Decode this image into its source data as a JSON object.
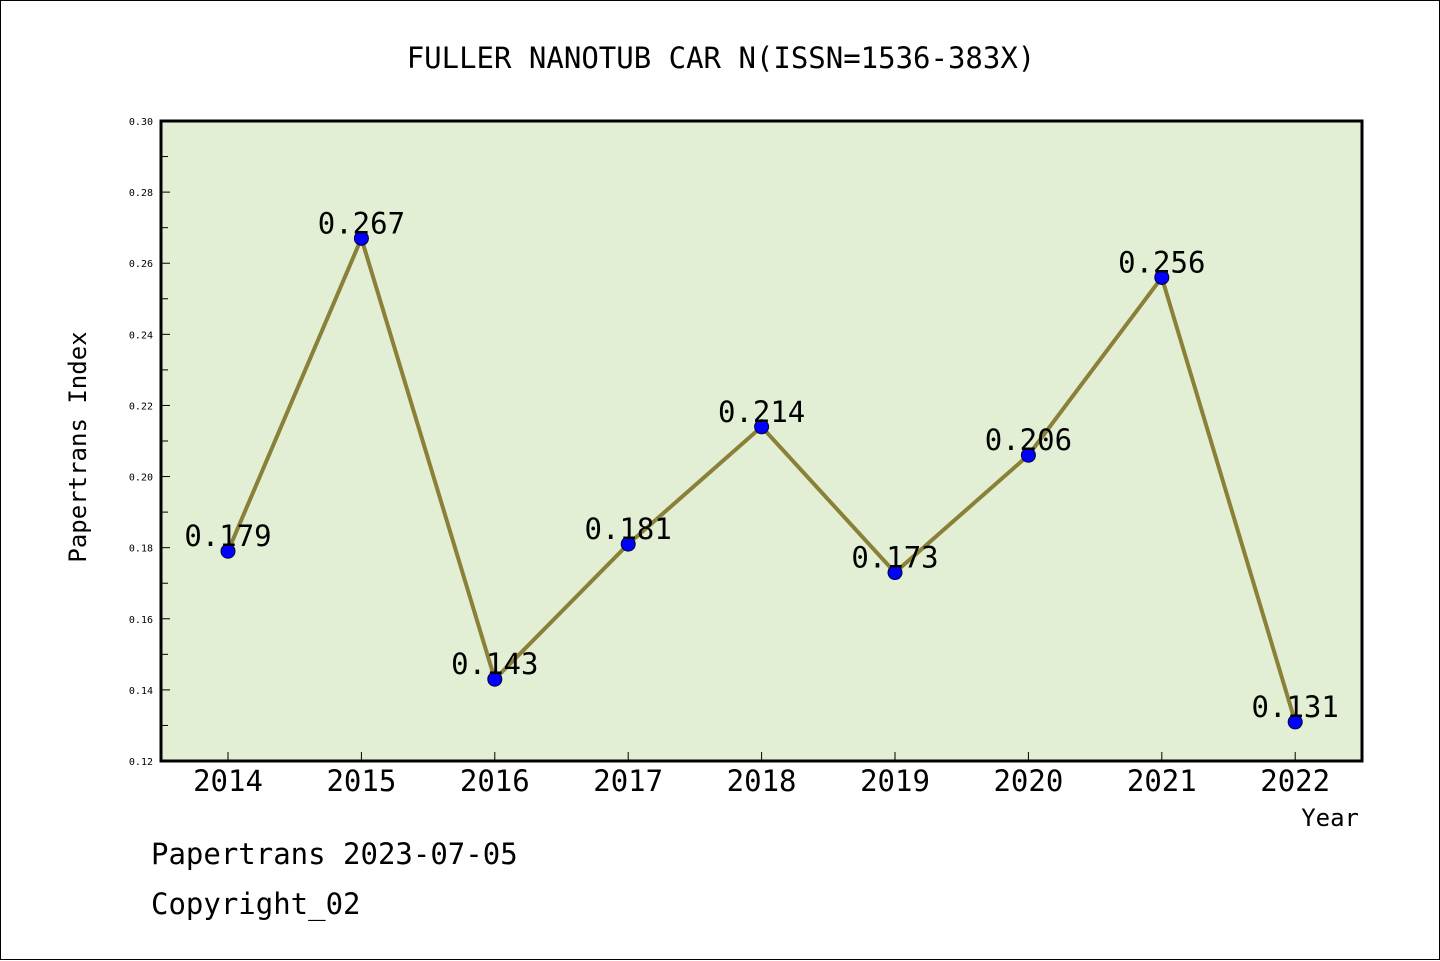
{
  "chart_data": {
    "type": "line",
    "title": "FULLER NANOTUB CAR N(ISSN=1536-383X)",
    "xlabel": "Year",
    "ylabel": "Papertrans Index",
    "x": [
      "2014",
      "2015",
      "2016",
      "2017",
      "2018",
      "2019",
      "2020",
      "2021",
      "2022"
    ],
    "values": [
      0.179,
      0.267,
      0.143,
      0.181,
      0.214,
      0.173,
      0.206,
      0.256,
      0.131
    ],
    "data_labels": [
      "0.179",
      "0.267",
      "0.143",
      "0.181",
      "0.214",
      "0.173",
      "0.206",
      "0.256",
      "0.131"
    ],
    "ylim": [
      0.12,
      0.3
    ],
    "yticks": [
      "0.12",
      "0.14",
      "0.16",
      "0.18",
      "0.20",
      "0.22",
      "0.24",
      "0.26",
      "0.28",
      "0.30"
    ],
    "grid": false,
    "colors": {
      "plot_background": "#e2efd4",
      "line": "#8b8038",
      "marker": "#0000ff"
    }
  },
  "footer": {
    "line1": "Papertrans 2023-07-05",
    "line2": "Copyright_02"
  }
}
